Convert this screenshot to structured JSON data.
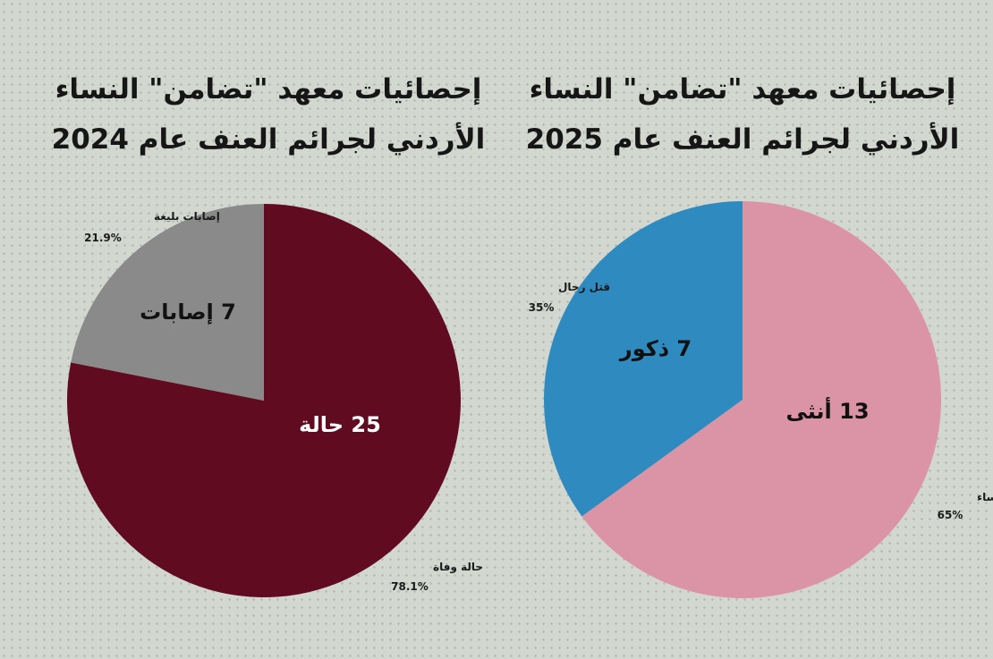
{
  "chart_data": [
    {
      "type": "pie",
      "title_line1": "إحصائيات معهد \"تضامن\" النساء",
      "title_line2": "الأردني لجرائم العنف عام 2024",
      "slices": [
        {
          "label": "حالة وفاة",
          "percent": "78.1%",
          "value": 78.1,
          "inner_label": "25 حالة",
          "color": "#600b20",
          "inner_color": "#ffffff"
        },
        {
          "label": "إصابات بليغة",
          "percent": "21.9%",
          "value": 21.9,
          "inner_label": "7 إصابات",
          "color": "#8a8a8a",
          "inner_color": "#111111"
        }
      ]
    },
    {
      "type": "pie",
      "title_line1": "إحصائيات معهد \"تضامن\" النساء",
      "title_line2": "الأردني لجرائم العنف عام 2025",
      "slices": [
        {
          "label": "قتل نساء",
          "percent": "65%",
          "value": 65,
          "inner_label": "13 أنثى",
          "color": "#db94a6",
          "inner_color": "#111111"
        },
        {
          "label": "قتل رجال",
          "percent": "35%",
          "value": 35,
          "inner_label": "7 ذكور",
          "color": "#2f8abf",
          "inner_color": "#111111"
        }
      ]
    }
  ]
}
